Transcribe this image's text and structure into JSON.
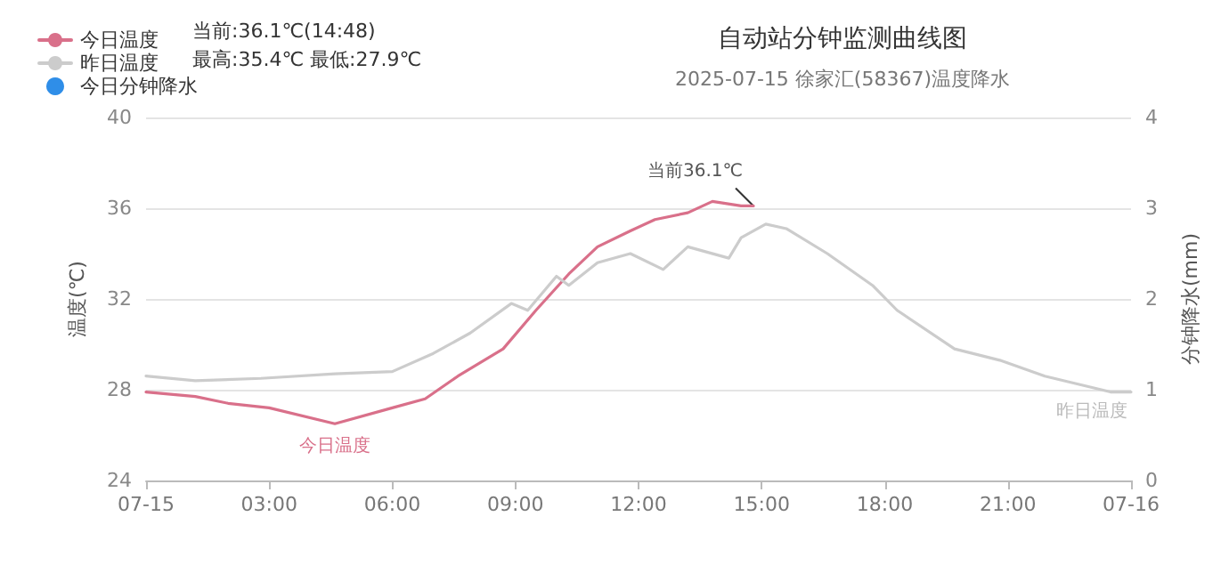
{
  "chart_data": {
    "type": "line",
    "title": "自动站分钟监测曲线图",
    "subtitle": "2025-07-15 徐家汇(58367)温度降水",
    "ylabel": "温度(℃)",
    "y2label": "分钟降水(mm)",
    "xlim": [
      0,
      24
    ],
    "xticks": [
      {
        "value": 0,
        "label": "07-15"
      },
      {
        "value": 3,
        "label": "03:00"
      },
      {
        "value": 6,
        "label": "06:00"
      },
      {
        "value": 9,
        "label": "09:00"
      },
      {
        "value": 12,
        "label": "12:00"
      },
      {
        "value": 15,
        "label": "15:00"
      },
      {
        "value": 18,
        "label": "18:00"
      },
      {
        "value": 21,
        "label": "21:00"
      },
      {
        "value": 24,
        "label": "07-16"
      }
    ],
    "ylim": [
      24,
      40
    ],
    "yticks": [
      24,
      28,
      32,
      36,
      40
    ],
    "y2lim": [
      0,
      4
    ],
    "y2ticks": [
      0,
      1,
      2,
      3,
      4
    ],
    "grid": "y",
    "legend": "top left",
    "marker": "none",
    "line_style": "solid",
    "series": [
      {
        "name": "今日温度",
        "color": "#d9708a",
        "x": [
          0,
          1.2,
          2,
          3,
          4.6,
          6,
          6.8,
          7.6,
          8.7,
          9.5,
          10.3,
          11,
          11.8,
          12.4,
          13.2,
          13.8,
          14.5,
          14.8
        ],
        "values": [
          27.9,
          27.7,
          27.4,
          27.2,
          26.5,
          27.2,
          27.6,
          28.6,
          29.8,
          31.5,
          33.1,
          34.3,
          35.0,
          35.5,
          35.8,
          36.3,
          36.1,
          36.1
        ]
      },
      {
        "name": "昨日温度",
        "color": "#cccccc",
        "x": [
          0,
          1.2,
          2.8,
          4.6,
          6,
          7,
          7.9,
          8.9,
          9.3,
          10,
          10.3,
          11,
          11.8,
          12.6,
          13.2,
          14.2,
          14.5,
          15.1,
          15.6,
          16.6,
          17.7,
          18.3,
          19.7,
          20.8,
          21.9,
          23.5,
          24
        ],
        "values": [
          28.6,
          28.4,
          28.5,
          28.7,
          28.8,
          29.6,
          30.5,
          31.8,
          31.5,
          33.0,
          32.6,
          33.6,
          34.0,
          33.3,
          34.3,
          33.8,
          34.7,
          35.3,
          35.1,
          34.0,
          32.6,
          31.5,
          29.8,
          29.3,
          28.6,
          27.9,
          27.9
        ]
      },
      {
        "name": "今日分钟降水",
        "color": "#2f8ee8",
        "type": "bar"
      }
    ],
    "annotations": [
      "当前:36.1℃(14:48)",
      "最高:35.4℃ 最低:27.9℃",
      {
        "text": "今日温度",
        "x": 4.6,
        "y": 26.5
      },
      {
        "text": "昨日温度",
        "x": 24,
        "y": 27.9
      },
      {
        "text": "当前36.1℃",
        "x": 14.8,
        "y": 36.1
      }
    ]
  }
}
